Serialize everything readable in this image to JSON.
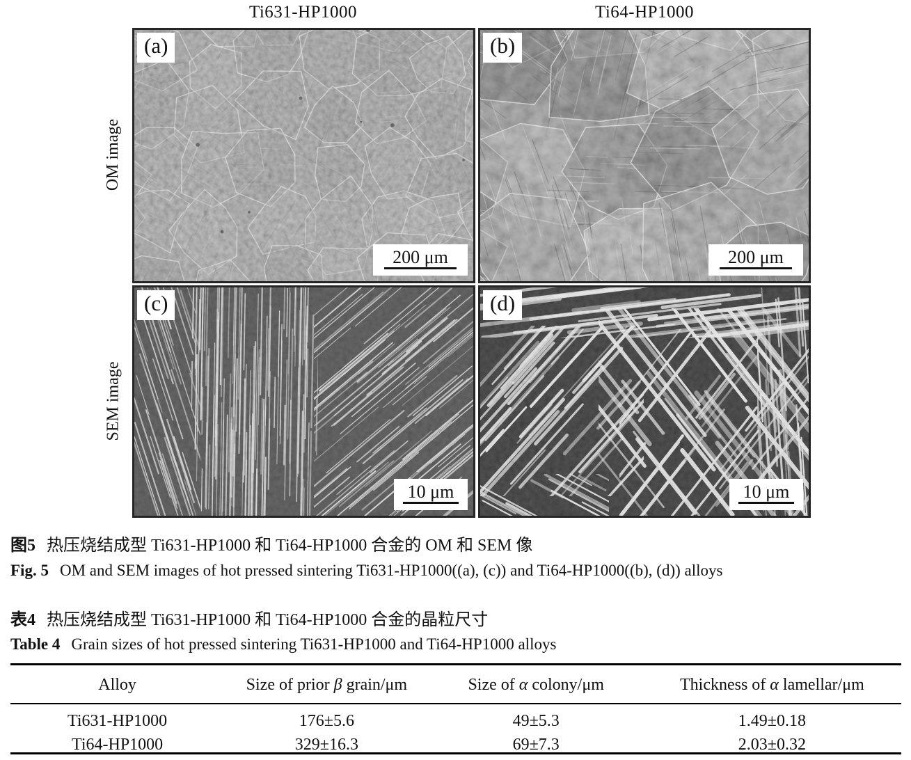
{
  "figure": {
    "column_titles": [
      "Ti631-HP1000",
      "Ti64-HP1000"
    ],
    "row_labels": [
      "OM image",
      "SEM image"
    ],
    "panels": [
      {
        "label": "(a)",
        "scale_bar": "200 μm"
      },
      {
        "label": "(b)",
        "scale_bar": "200 μm"
      },
      {
        "label": "(c)",
        "scale_bar": "10 μm"
      },
      {
        "label": "(d)",
        "scale_bar": "10 μm"
      }
    ],
    "caption_cn": {
      "label": "图5",
      "text": "热压烧结成型 Ti631-HP1000 和 Ti64-HP1000 合金的 OM 和 SEM 像"
    },
    "caption_en": {
      "label": "Fig. 5",
      "text": "OM and SEM images of hot pressed sintering Ti631-HP1000((a), (c)) and Ti64-HP1000((b), (d)) alloys"
    }
  },
  "table": {
    "caption_cn": {
      "label": "表4",
      "text": "热压烧结成型 Ti631-HP1000 和 Ti64-HP1000 合金的晶粒尺寸"
    },
    "caption_en": {
      "label": "Table 4",
      "text": "Grain sizes of hot pressed sintering Ti631-HP1000 and Ti64-HP1000 alloys"
    },
    "headers": [
      {
        "pre": "Alloy",
        "greek": "",
        "post": ""
      },
      {
        "pre": "Size of prior ",
        "greek": "β",
        "post": " grain/μm"
      },
      {
        "pre": "Size of ",
        "greek": "α",
        "post": " colony/μm"
      },
      {
        "pre": "Thickness of ",
        "greek": "α",
        "post": " lamellar/μm"
      }
    ],
    "rows": [
      [
        "Ti631-HP1000",
        "176±5.6",
        "49±5.3",
        "1.49±0.18"
      ],
      [
        "Ti64-HP1000",
        "329±16.3",
        "69±7.3",
        "2.03±0.32"
      ]
    ]
  }
}
